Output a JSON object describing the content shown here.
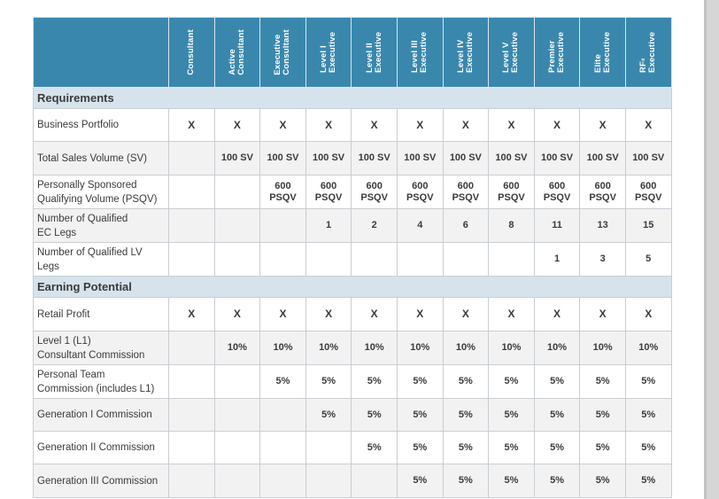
{
  "columns": [
    [
      "Consultant"
    ],
    [
      "Active",
      "Consultant"
    ],
    [
      "Executive",
      "Consultant"
    ],
    [
      "Level I",
      "Executive"
    ],
    [
      "Level II",
      "Executive"
    ],
    [
      "Level III",
      "Executive"
    ],
    [
      "Level IV",
      "Executive"
    ],
    [
      "Level V",
      "Executive"
    ],
    [
      "Premier",
      "Executive"
    ],
    [
      "Elite",
      "Executive"
    ],
    [
      "RF",
      "Executive"
    ]
  ],
  "rf_mark": "x",
  "sections": {
    "requirements": "Requirements",
    "earning": "Earning Potential"
  },
  "rows": {
    "business_portfolio": {
      "label": [
        "Business Portfolio"
      ],
      "values": [
        "X",
        "X",
        "X",
        "X",
        "X",
        "X",
        "X",
        "X",
        "X",
        "X",
        "X"
      ]
    },
    "total_sv": {
      "label": [
        "Total Sales Volume (SV)"
      ],
      "values": [
        "",
        "100 SV",
        "100 SV",
        "100 SV",
        "100 SV",
        "100 SV",
        "100 SV",
        "100 SV",
        "100 SV",
        "100 SV",
        "100 SV"
      ]
    },
    "psqv": {
      "label": [
        "Personally Sponsored",
        "Qualifying Volume (PSQV)"
      ],
      "values": [
        [],
        [],
        [
          "600",
          "PSQV"
        ],
        [
          "600",
          "PSQV"
        ],
        [
          "600",
          "PSQV"
        ],
        [
          "600",
          "PSQV"
        ],
        [
          "600",
          "PSQV"
        ],
        [
          "600",
          "PSQV"
        ],
        [
          "600",
          "PSQV"
        ],
        [
          "600",
          "PSQV"
        ],
        [
          "600",
          "PSQV"
        ]
      ]
    },
    "ec_legs": {
      "label": [
        "Number of Qualified",
        "EC Legs"
      ],
      "values": [
        "",
        "",
        "",
        "1",
        "2",
        "4",
        "6",
        "8",
        "11",
        "13",
        "15"
      ]
    },
    "lv_legs": {
      "label": [
        "Number of Qualified LV",
        "Legs"
      ],
      "values": [
        "",
        "",
        "",
        "",
        "",
        "",
        "",
        "",
        "1",
        "3",
        "5"
      ]
    },
    "retail_profit": {
      "label": [
        "Retail Profit"
      ],
      "values": [
        "X",
        "X",
        "X",
        "X",
        "X",
        "X",
        "X",
        "X",
        "X",
        "X",
        "X"
      ]
    },
    "l1": {
      "label": [
        "Level 1 (L1)",
        "Consultant Commission"
      ],
      "values": [
        "",
        "10%",
        "10%",
        "10%",
        "10%",
        "10%",
        "10%",
        "10%",
        "10%",
        "10%",
        "10%"
      ]
    },
    "ptc": {
      "label": [
        "Personal Team",
        "Commission (includes L1)"
      ],
      "values": [
        "",
        "",
        "5%",
        "5%",
        "5%",
        "5%",
        "5%",
        "5%",
        "5%",
        "5%",
        "5%"
      ]
    },
    "gen1": {
      "label": [
        "Generation I Commission"
      ],
      "values": [
        "",
        "",
        "",
        "5%",
        "5%",
        "5%",
        "5%",
        "5%",
        "5%",
        "5%",
        "5%"
      ]
    },
    "gen2": {
      "label": [
        "Generation II Commission"
      ],
      "values": [
        "",
        "",
        "",
        "",
        "5%",
        "5%",
        "5%",
        "5%",
        "5%",
        "5%",
        "5%"
      ]
    },
    "gen3": {
      "label": [
        "Generation III Commission"
      ],
      "values": [
        "",
        "",
        "",
        "",
        "",
        "5%",
        "5%",
        "5%",
        "5%",
        "5%",
        "5%"
      ]
    }
  }
}
